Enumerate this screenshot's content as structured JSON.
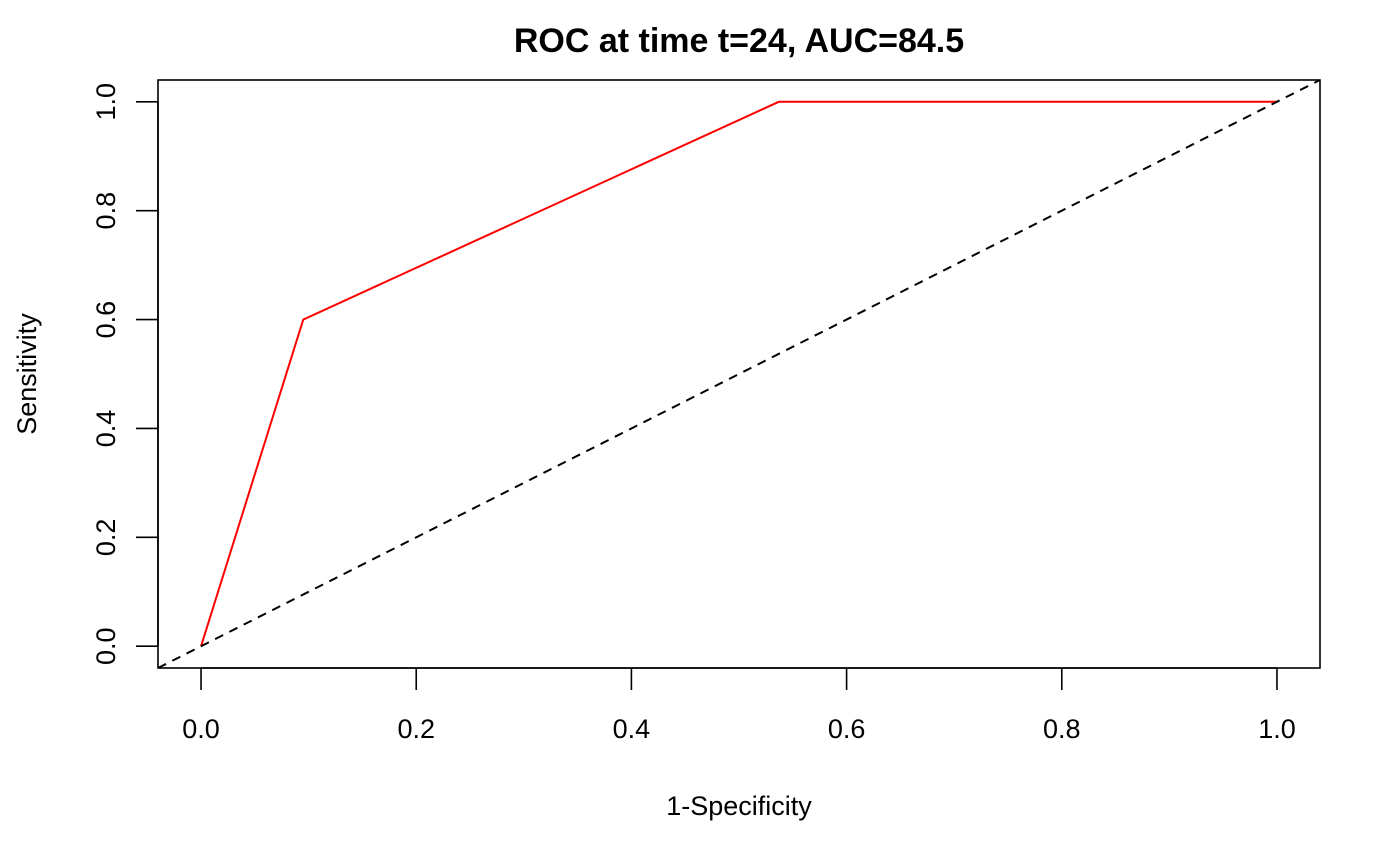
{
  "chart_data": {
    "type": "line",
    "title": "ROC at time t=24, AUC=84.5",
    "xlabel": "1-Specificity",
    "ylabel": "Sensitivity",
    "xlim": [
      -0.04,
      1.04
    ],
    "ylim": [
      -0.04,
      1.04
    ],
    "x_ticks": [
      0.0,
      0.2,
      0.4,
      0.6,
      0.8,
      1.0
    ],
    "y_ticks": [
      0.0,
      0.2,
      0.4,
      0.6,
      0.8,
      1.0
    ],
    "x_tick_labels": [
      "0.0",
      "0.2",
      "0.4",
      "0.6",
      "0.8",
      "1.0"
    ],
    "y_tick_labels": [
      "0.0",
      "0.2",
      "0.4",
      "0.6",
      "0.8",
      "1.0"
    ],
    "grid": false,
    "series": [
      {
        "color": "#ff0000",
        "style": "solid",
        "x": [
          0.0,
          0.095,
          0.537,
          1.0
        ],
        "y": [
          0.0,
          0.6,
          1.0,
          1.0
        ]
      },
      {
        "color": "#000000",
        "style": "dashed",
        "x": [
          -0.04,
          1.04
        ],
        "y": [
          -0.04,
          1.04
        ]
      }
    ]
  }
}
